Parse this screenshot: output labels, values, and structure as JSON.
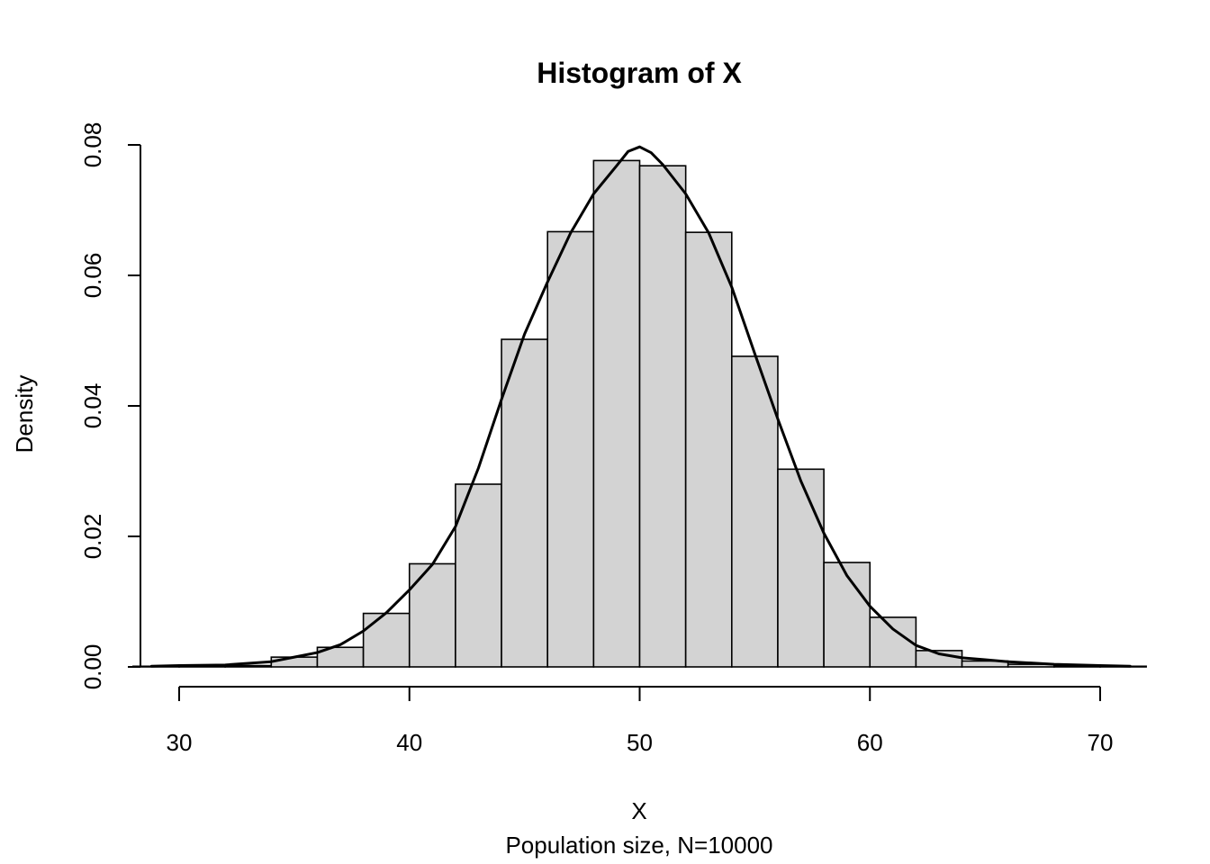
{
  "chart_data": {
    "type": "bar",
    "title": "Histogram of X",
    "xlabel": "X",
    "ylabel": "Density",
    "subtitle": "Population size, N=10000",
    "xlim": [
      28.5,
      71.5
    ],
    "ylim": [
      0,
      0.08
    ],
    "x_ticks": [
      30,
      40,
      50,
      60,
      70
    ],
    "x_tick_labels": [
      "30",
      "40",
      "50",
      "60",
      "70"
    ],
    "y_ticks": [
      0,
      0.02,
      0.04,
      0.06,
      0.08
    ],
    "y_tick_labels": [
      "0.00",
      "0.02",
      "0.04",
      "0.06",
      "0.08"
    ],
    "grid": false,
    "legend": "none",
    "bins": {
      "breaks": [
        28,
        30,
        32,
        34,
        36,
        38,
        40,
        42,
        44,
        46,
        48,
        50,
        52,
        54,
        56,
        58,
        60,
        62,
        64,
        66,
        68,
        70,
        72
      ],
      "density": [
        0.0001,
        0.0001,
        0.0002,
        0.0015,
        0.003,
        0.0082,
        0.0158,
        0.028,
        0.0502,
        0.0667,
        0.0776,
        0.0768,
        0.0666,
        0.0476,
        0.0303,
        0.016,
        0.0076,
        0.0025,
        0.0009,
        0.0004,
        0.0002,
        0.0001
      ]
    },
    "series": [
      {
        "values": {
          "x": [
            28.8,
            30,
            32,
            34,
            35,
            36,
            37,
            38,
            39,
            40,
            41,
            42,
            43,
            44,
            45,
            46,
            47,
            48,
            49,
            49.5,
            50,
            50.5,
            51,
            52,
            53,
            54,
            55,
            56,
            57,
            58,
            59,
            60,
            61,
            62,
            63,
            64,
            65,
            66,
            67,
            68,
            70,
            71.3
          ],
          "y": [
            0.0001,
            0.0002,
            0.0003,
            0.0008,
            0.0015,
            0.0022,
            0.0034,
            0.0055,
            0.0083,
            0.0118,
            0.0157,
            0.0215,
            0.0305,
            0.041,
            0.051,
            0.059,
            0.0665,
            0.0725,
            0.0768,
            0.079,
            0.0797,
            0.0788,
            0.077,
            0.0725,
            0.0665,
            0.0582,
            0.048,
            0.038,
            0.0285,
            0.0205,
            0.014,
            0.0093,
            0.0058,
            0.0033,
            0.002,
            0.0014,
            0.0011,
            0.0008,
            0.0006,
            0.0004,
            0.0002,
            0.0001
          ]
        }
      }
    ]
  }
}
